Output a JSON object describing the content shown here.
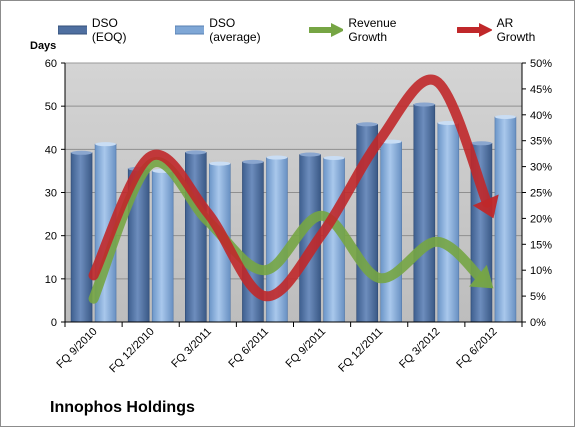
{
  "chart_data": {
    "type": "bar",
    "company": "Innophos Holdings",
    "ylabel": "Days",
    "categories": [
      "FQ 9/2010",
      "FQ 12/2010",
      "FQ 3/2011",
      "FQ 6/2011",
      "FQ 9/2011",
      "FQ 12/2011",
      "FQ 3/2012",
      "FQ 6/2012"
    ],
    "ylim_left": [
      0,
      60
    ],
    "ylim_right": [
      0,
      50
    ],
    "yticks_left": [
      "0",
      "10",
      "20",
      "30",
      "40",
      "50",
      "60"
    ],
    "yticks_right": [
      "0%",
      "5%",
      "10%",
      "15%",
      "20%",
      "25%",
      "30%",
      "35%",
      "40%",
      "45%",
      "50%"
    ],
    "grid": "horizontal",
    "legend_position": "top",
    "series": [
      {
        "name": "DSO (EOQ)",
        "kind": "bar",
        "axis": "left",
        "color": "#4f6fa0",
        "values": [
          39.2,
          35.5,
          39.3,
          37.1,
          38.8,
          45.8,
          50.4,
          41.4
        ]
      },
      {
        "name": "DSO (average)",
        "kind": "bar",
        "axis": "left",
        "color": "#7fa7d6",
        "values": [
          41.2,
          35.0,
          36.7,
          38.1,
          38.0,
          41.8,
          46.1,
          47.5
        ]
      },
      {
        "name": "Revenue Growth",
        "kind": "arrow-line",
        "axis": "right",
        "unit": "%",
        "color": "#76a544",
        "values": [
          4.5,
          30.5,
          19.5,
          10.0,
          20.5,
          8.5,
          15.5,
          6.5
        ]
      },
      {
        "name": "AR Growth",
        "kind": "arrow-line",
        "axis": "right",
        "unit": "%",
        "color": "#c0282a",
        "values": [
          9.0,
          32.0,
          21.0,
          5.0,
          17.0,
          35.0,
          46.5,
          20.0
        ]
      }
    ]
  }
}
